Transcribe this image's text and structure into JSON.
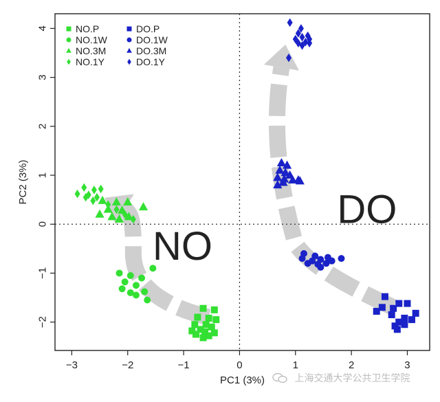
{
  "chart_data": {
    "type": "scatter",
    "xlabel": "PC1 (3%)",
    "ylabel": "PC2 (3%)",
    "xlim": [
      -3.3,
      3.4
    ],
    "ylim": [
      -2.58,
      4.3
    ],
    "xticks": [
      -3,
      -2,
      -1,
      0,
      1,
      2,
      3
    ],
    "yticks": [
      -2,
      -1,
      0,
      1,
      2,
      3,
      4
    ],
    "reference_lines": {
      "x": 0,
      "y": 0,
      "style": "dotted"
    },
    "legend_placement": "top-left",
    "annotations": [
      {
        "text": "NO",
        "x": -1.02,
        "y": -0.45
      },
      {
        "text": "DO",
        "x": 2.28,
        "y": 0.3
      }
    ],
    "series": [
      {
        "name": "NO.P",
        "marker": "square",
        "color": "#33e033",
        "points": [
          [
            -0.65,
            -1.72
          ],
          [
            -0.45,
            -1.75
          ],
          [
            -0.75,
            -1.9
          ],
          [
            -0.55,
            -1.92
          ],
          [
            -0.42,
            -1.95
          ],
          [
            -0.8,
            -2.05
          ],
          [
            -0.6,
            -2.05
          ],
          [
            -0.5,
            -2.1
          ],
          [
            -0.7,
            -2.15
          ],
          [
            -0.85,
            -2.18
          ],
          [
            -0.62,
            -2.2
          ],
          [
            -0.45,
            -2.22
          ],
          [
            -0.78,
            -2.25
          ],
          [
            -0.55,
            -2.28
          ],
          [
            -0.65,
            -2.32
          ]
        ]
      },
      {
        "name": "NO.1W",
        "marker": "circle",
        "color": "#33e033",
        "points": [
          [
            -1.55,
            -0.9
          ],
          [
            -2.15,
            -1.0
          ],
          [
            -1.95,
            -1.05
          ],
          [
            -1.75,
            -1.1
          ],
          [
            -2.05,
            -1.18
          ],
          [
            -1.85,
            -1.25
          ],
          [
            -2.1,
            -1.32
          ],
          [
            -1.95,
            -1.4
          ],
          [
            -1.7,
            -1.38
          ],
          [
            -1.85,
            -1.45
          ],
          [
            -1.65,
            -1.55
          ]
        ]
      },
      {
        "name": "NO.3M",
        "marker": "triangle",
        "color": "#33e033",
        "points": [
          [
            -2.45,
            0.48
          ],
          [
            -2.2,
            0.45
          ],
          [
            -2.0,
            0.45
          ],
          [
            -1.72,
            0.35
          ],
          [
            -2.35,
            0.3
          ],
          [
            -2.1,
            0.28
          ],
          [
            -2.5,
            0.2
          ],
          [
            -2.28,
            0.15
          ],
          [
            -1.98,
            0.15
          ],
          [
            -2.15,
            0.1
          ]
        ]
      },
      {
        "name": "NO.1Y",
        "marker": "diamond",
        "color": "#33e033",
        "points": [
          [
            -2.78,
            0.75
          ],
          [
            -2.6,
            0.7
          ],
          [
            -2.48,
            0.72
          ],
          [
            -2.9,
            0.62
          ],
          [
            -2.7,
            0.6
          ],
          [
            -2.55,
            0.55
          ],
          [
            -2.75,
            0.55
          ],
          [
            -2.62,
            0.48
          ],
          [
            -2.35,
            0.4
          ],
          [
            -2.2,
            0.3
          ],
          [
            -2.05,
            0.2
          ],
          [
            -1.9,
            0.1
          ]
        ]
      },
      {
        "name": "DO.P",
        "marker": "square",
        "color": "#1a22c8",
        "points": [
          [
            2.6,
            -1.48
          ],
          [
            2.85,
            -1.62
          ],
          [
            3.0,
            -1.62
          ],
          [
            2.55,
            -1.7
          ],
          [
            2.75,
            -1.72
          ],
          [
            2.45,
            -1.78
          ],
          [
            3.15,
            -1.82
          ],
          [
            2.72,
            -1.85
          ],
          [
            2.95,
            -1.92
          ],
          [
            3.08,
            -1.95
          ],
          [
            2.85,
            -2.0
          ],
          [
            2.78,
            -2.08
          ],
          [
            2.95,
            -2.05
          ],
          [
            2.82,
            -2.15
          ]
        ]
      },
      {
        "name": "DO.1W",
        "marker": "circle",
        "color": "#1a22c8",
        "points": [
          [
            1.15,
            -0.6
          ],
          [
            1.35,
            -0.65
          ],
          [
            1.58,
            -0.68
          ],
          [
            1.82,
            -0.7
          ],
          [
            1.12,
            -0.7
          ],
          [
            1.45,
            -0.72
          ],
          [
            1.3,
            -0.75
          ],
          [
            1.65,
            -0.75
          ],
          [
            1.55,
            -0.8
          ],
          [
            1.4,
            -0.82
          ],
          [
            1.22,
            -0.8
          ],
          [
            1.45,
            -0.88
          ]
        ]
      },
      {
        "name": "DO.3M",
        "marker": "triangle",
        "color": "#1a22c8",
        "points": [
          [
            0.75,
            1.25
          ],
          [
            0.85,
            1.2
          ],
          [
            0.72,
            1.1
          ],
          [
            0.82,
            1.05
          ],
          [
            0.9,
            1.0
          ],
          [
            0.68,
            0.95
          ],
          [
            0.8,
            0.92
          ],
          [
            0.95,
            0.9
          ],
          [
            1.05,
            0.9
          ],
          [
            0.78,
            0.85
          ],
          [
            0.68,
            0.8
          ],
          [
            1.08,
            0.88
          ]
        ]
      },
      {
        "name": "DO.1Y",
        "marker": "diamond",
        "color": "#1a22c8",
        "points": [
          [
            0.9,
            4.12
          ],
          [
            1.1,
            4.0
          ],
          [
            1.05,
            3.9
          ],
          [
            1.22,
            3.85
          ],
          [
            1.25,
            3.78
          ],
          [
            1.12,
            3.82
          ],
          [
            1.0,
            3.78
          ],
          [
            1.18,
            3.72
          ],
          [
            1.05,
            3.7
          ],
          [
            1.25,
            3.7
          ],
          [
            1.12,
            3.65
          ],
          [
            0.88,
            3.4
          ]
        ]
      }
    ],
    "legend": {
      "columns": [
        [
          "NO.P",
          "NO.1W",
          "NO.3M",
          "NO.1Y"
        ],
        [
          "DO.P",
          "DO.1W",
          "DO.3M",
          "DO.1Y"
        ]
      ]
    },
    "arrows_color": "#cfcfcf"
  },
  "watermark": {
    "text": "上海交通大学公共卫生学院"
  }
}
